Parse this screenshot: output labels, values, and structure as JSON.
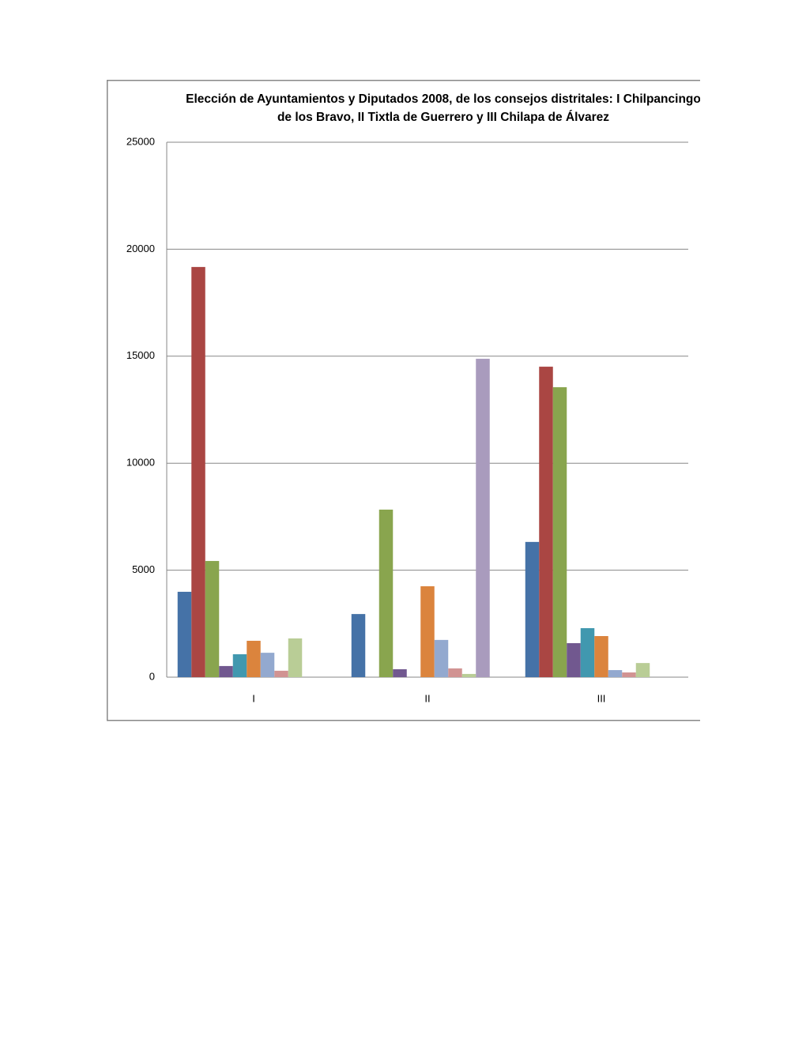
{
  "chart_data": {
    "type": "bar",
    "title": [
      "Elección de Ayuntamientos y Diputados 2008, de los consejos distritales: I Chilpancingo",
      "de los Bravo, II Tixtla de Guerrero y III Chilapa de Álvarez"
    ],
    "categories": [
      "I",
      "II",
      "III"
    ],
    "series": [
      {
        "color": "#4572a7",
        "values": [
          3990,
          2950,
          6320
        ]
      },
      {
        "color": "#aa4643",
        "values": [
          19170,
          0,
          14510
        ]
      },
      {
        "color": "#89a54e",
        "values": [
          5430,
          7830,
          13550
        ]
      },
      {
        "color": "#71588f",
        "values": [
          520,
          370,
          1590
        ]
      },
      {
        "color": "#4198af",
        "values": [
          1070,
          0,
          2290
        ]
      },
      {
        "color": "#db843d",
        "values": [
          1700,
          4250,
          1920
        ]
      },
      {
        "color": "#93a9cf",
        "values": [
          1140,
          1740,
          330
        ]
      },
      {
        "color": "#d19392",
        "values": [
          300,
          410,
          220
        ]
      },
      {
        "color": "#b9cd96",
        "values": [
          1810,
          150,
          660
        ]
      },
      {
        "color": "#a99bbd",
        "values": [
          0,
          14880,
          0
        ]
      }
    ],
    "ylim": [
      0,
      25000
    ],
    "yticks": [
      0,
      5000,
      10000,
      15000,
      20000,
      25000
    ],
    "grid": true
  }
}
